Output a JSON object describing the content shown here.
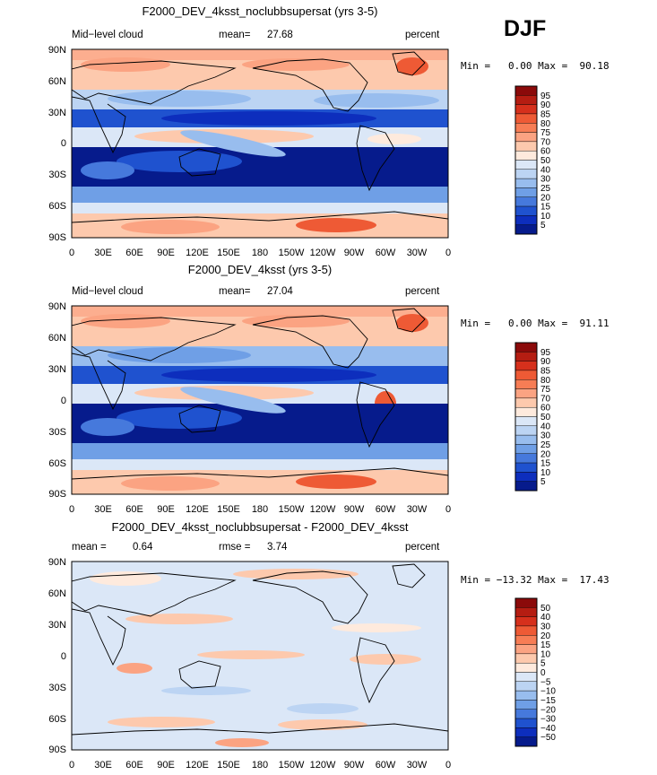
{
  "season_label": "DJF",
  "colorbar_top": {
    "labels": [
      "95",
      "90",
      "85",
      "80",
      "75",
      "70",
      "60",
      "50",
      "40",
      "30",
      "25",
      "20",
      "15",
      "10",
      "5"
    ],
    "colors": [
      "#8b0a0a",
      "#b51d12",
      "#d6301c",
      "#ee5a35",
      "#f77d55",
      "#fba382",
      "#fdc9ad",
      "#feeadd",
      "#dbe7f7",
      "#bcd4f3",
      "#98bdee",
      "#6f9fe6",
      "#4679dc",
      "#1f52cf",
      "#0d2ebd",
      "#061b8c"
    ]
  },
  "colorbar_diff": {
    "labels": [
      "50",
      "40",
      "30",
      "20",
      "15",
      "10",
      "5",
      "0",
      "−5",
      "−10",
      "−15",
      "−20",
      "−30",
      "−40",
      "−50"
    ],
    "colors": [
      "#8b0a0a",
      "#b51d12",
      "#d6301c",
      "#ee5a35",
      "#f77d55",
      "#fba382",
      "#fdc9ad",
      "#feeadd",
      "#dbe7f7",
      "#bcd4f3",
      "#98bdee",
      "#6f9fe6",
      "#4679dc",
      "#1f52cf",
      "#0d2ebd",
      "#061b8c"
    ]
  },
  "axes": {
    "lat_ticks": [
      "90N",
      "60N",
      "30N",
      "0",
      "30S",
      "60S",
      "90S"
    ],
    "lon_ticks": [
      "0",
      "30E",
      "60E",
      "90E",
      "120E",
      "150E",
      "180",
      "150W",
      "120W",
      "90W",
      "60W",
      "30W",
      "0"
    ]
  },
  "chart_data": [
    {
      "type": "heatmap",
      "title": "F2000_DEV_4ksst_noclubbsupersat (yrs 3-5)",
      "variable": "Mid−level cloud",
      "mean_label": "mean=",
      "mean": "27.68",
      "units": "percent",
      "minmax_text": "Min =   0.00 Max =  90.18",
      "min": 0.0,
      "max": 90.18,
      "levels": [
        5,
        10,
        15,
        20,
        25,
        30,
        40,
        50,
        60,
        70,
        75,
        80,
        85,
        90,
        95
      ],
      "x_range": [
        0,
        360
      ],
      "y_range": [
        -90,
        90
      ]
    },
    {
      "type": "heatmap",
      "title": "F2000_DEV_4ksst (yrs 3-5)",
      "variable": "Mid−level cloud",
      "mean_label": "mean=",
      "mean": "27.04",
      "units": "percent",
      "minmax_text": "Min =   0.00 Max =  91.11",
      "min": 0.0,
      "max": 91.11,
      "levels": [
        5,
        10,
        15,
        20,
        25,
        30,
        40,
        50,
        60,
        70,
        75,
        80,
        85,
        90,
        95
      ],
      "x_range": [
        0,
        360
      ],
      "y_range": [
        -90,
        90
      ]
    },
    {
      "type": "heatmap",
      "title": "F2000_DEV_4ksst_noclubbsupersat - F2000_DEV_4ksst",
      "mean_label": "mean =",
      "mean": "0.64",
      "rmse_label": "rmse =",
      "rmse": "3.74",
      "units": "percent",
      "minmax_text": "Min = −13.32 Max =  17.43",
      "min": -13.32,
      "max": 17.43,
      "levels": [
        -50,
        -40,
        -30,
        -20,
        -15,
        -10,
        -5,
        0,
        5,
        10,
        15,
        20,
        30,
        40,
        50
      ],
      "x_range": [
        0,
        360
      ],
      "y_range": [
        -90,
        90
      ]
    }
  ]
}
